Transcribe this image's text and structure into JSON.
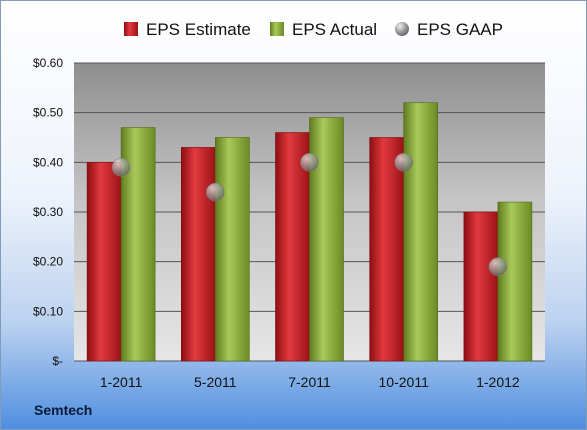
{
  "company": "Semtech",
  "colors": {
    "estimate": "#d32127",
    "actual": "#8fb23a",
    "gaap": "#a9a9a9"
  },
  "chart_data": {
    "type": "bar",
    "categories": [
      "1-2011",
      "5-2011",
      "7-2011",
      "10-2011",
      "1-2012"
    ],
    "series": [
      {
        "name": "EPS Estimate",
        "type": "bar",
        "values": [
          0.4,
          0.43,
          0.46,
          0.45,
          0.3
        ]
      },
      {
        "name": "EPS Actual",
        "type": "bar",
        "values": [
          0.47,
          0.45,
          0.49,
          0.52,
          0.32
        ]
      },
      {
        "name": "EPS GAAP",
        "type": "scatter",
        "values": [
          0.39,
          0.34,
          0.4,
          0.4,
          0.19
        ]
      }
    ],
    "ylim": [
      0,
      0.6
    ],
    "yticks": [
      0,
      0.1,
      0.2,
      0.3,
      0.4,
      0.5,
      0.6
    ],
    "ytick_labels": [
      "$-",
      "$0.10",
      "$0.20",
      "$0.30",
      "$0.40",
      "$0.50",
      "$0.60"
    ],
    "grid": true,
    "legend": "top"
  }
}
